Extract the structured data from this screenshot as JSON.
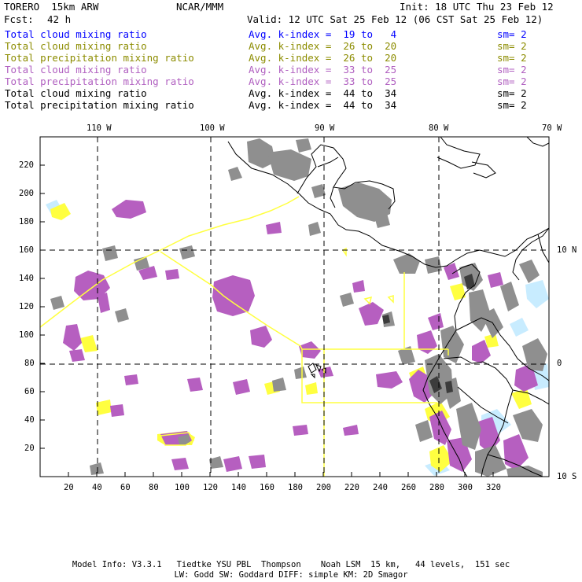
{
  "header": {
    "model": "TORERO  15km ARW",
    "org": "NCAR/MMM",
    "init": "Init: 18 UTC Thu 23 Feb 12",
    "fcst_label": "Fcst:",
    "fcst_value": "42 h",
    "valid": "Valid: 12 UTC Sat 25 Feb 12 (06 CST Sat 25 Feb 12)"
  },
  "legend": [
    {
      "field": "Total cloud mixing ratio",
      "kindex": "Avg. k-index =  19 to   4",
      "sm": "sm= 2",
      "color": "#0000ff"
    },
    {
      "field": "Total cloud mixing ratio",
      "kindex": "Avg. k-index =  26 to  20",
      "sm": "sm= 2",
      "color": "#8c8c00"
    },
    {
      "field": "Total precipitation mixing ratio",
      "kindex": "Avg. k-index =  26 to  20",
      "sm": "sm= 2",
      "color": "#8c8c00"
    },
    {
      "field": "Total cloud mixing ratio",
      "kindex": "Avg. k-index =  33 to  25",
      "sm": "sm= 2",
      "color": "#b05fc0"
    },
    {
      "field": "Total precipitation mixing ratio",
      "kindex": "Avg. k-index =  33 to  25",
      "sm": "sm= 2",
      "color": "#b05fc0"
    },
    {
      "field": "Total cloud mixing ratio",
      "kindex": "Avg. k-index =  44 to  34",
      "sm": "sm= 2",
      "color": "#000000"
    },
    {
      "field": "Total precipitation mixing ratio",
      "kindex": "Avg. k-index =  44 to  34",
      "sm": "sm= 2",
      "color": "#000000"
    }
  ],
  "axes": {
    "x_ticks": [
      "20",
      "40",
      "60",
      "80",
      "100",
      "120",
      "140",
      "160",
      "180",
      "200",
      "220",
      "240",
      "260",
      "280",
      "300",
      "320"
    ],
    "y_ticks": [
      "20",
      "40",
      "60",
      "80",
      "100",
      "120",
      "140",
      "160",
      "180",
      "200",
      "220"
    ],
    "lon_labels": [
      "110 W",
      "100 W",
      "90 W",
      "80 W",
      "70 W"
    ],
    "lat_labels": [
      "10 N",
      "0",
      "10 S"
    ]
  },
  "footer": {
    "line1": "Model Info: V3.3.1   Tiedtke YSU PBL  Thompson    Noah LSM  15 km,   44 levels,  151 sec",
    "line2": "LW: Godd SW: Goddard DIFF: simple KM: 2D Smagor"
  },
  "colors": {
    "yellow_contour": "#ffff40",
    "purple_fill": "#b65fc0",
    "gray_fill": "#8f8f8f",
    "light_blue": "#c8ecff",
    "grid_dash": "#000000"
  }
}
